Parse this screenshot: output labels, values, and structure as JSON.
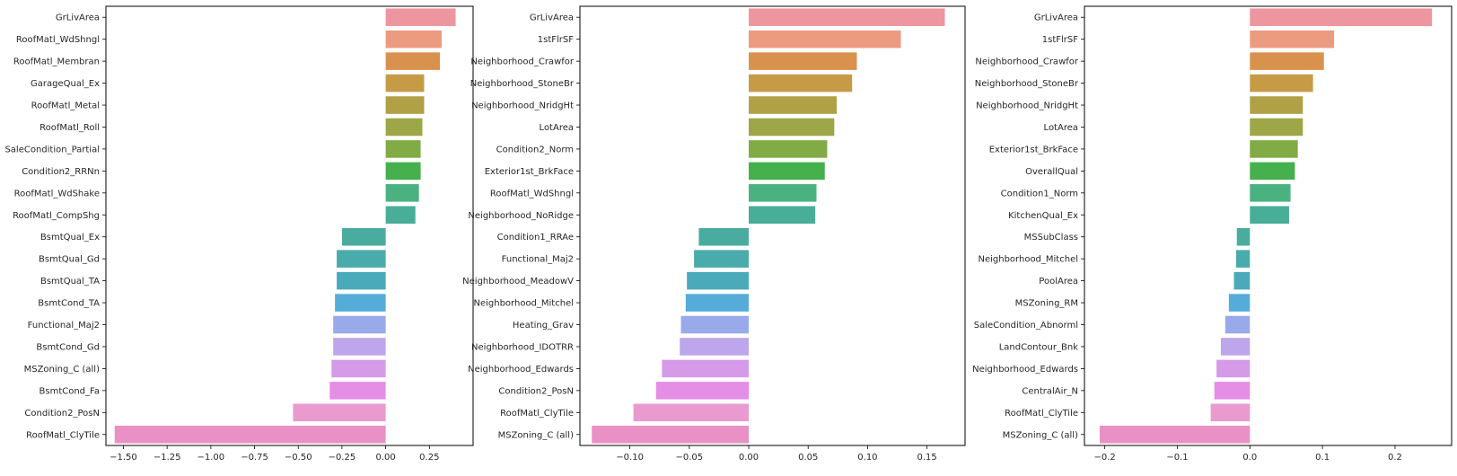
{
  "palette": [
    "#ee96a0",
    "#ec9b80",
    "#d9924e",
    "#c59b46",
    "#b0a046",
    "#9da747",
    "#80ab45",
    "#46b04d",
    "#4ab281",
    "#49ae97",
    "#4aac9f",
    "#4aabab",
    "#4aaab9",
    "#55acd9",
    "#98aae9",
    "#bda6eb",
    "#d59be9",
    "#e58ee5",
    "#e99bcf",
    "#e991c4"
  ],
  "chart_data": [
    {
      "type": "bar",
      "orientation": "horizontal",
      "categories": [
        "GrLivArea",
        "RoofMatl_WdShngl",
        "RoofMatl_Membran",
        "GarageQual_Ex",
        "RoofMatl_Metal",
        "RoofMatl_Roll",
        "SaleCondition_Partial",
        "Condition2_RRNn",
        "RoofMatl_WdShake",
        "RoofMatl_CompShg",
        "BsmtQual_Ex",
        "BsmtQual_Gd",
        "BsmtQual_TA",
        "BsmtCond_TA",
        "Functional_Maj2",
        "BsmtCond_Gd",
        "MSZoning_C (all)",
        "BsmtCond_Fa",
        "Condition2_PosN",
        "RoofMatl_ClyTile"
      ],
      "values": [
        0.4,
        0.32,
        0.31,
        0.22,
        0.22,
        0.21,
        0.2,
        0.2,
        0.19,
        0.17,
        -0.25,
        -0.28,
        -0.28,
        -0.29,
        -0.3,
        -0.3,
        -0.31,
        -0.32,
        -0.53,
        -1.55
      ],
      "xlim": [
        -1.6,
        0.5
      ],
      "xticks": [
        -1.5,
        -1.25,
        -1.0,
        -0.75,
        -0.5,
        -0.25,
        0.0,
        0.25
      ],
      "xtick_labels": [
        "−1.50",
        "−1.25",
        "−1.00",
        "−0.75",
        "−0.50",
        "−0.25",
        "0.00",
        "0.25"
      ],
      "grid": false
    },
    {
      "type": "bar",
      "orientation": "horizontal",
      "categories": [
        "GrLivArea",
        "1stFlrSF",
        "Neighborhood_Crawfor",
        "Neighborhood_StoneBr",
        "Neighborhood_NridgHt",
        "LotArea",
        "Condition2_Norm",
        "Exterior1st_BrkFace",
        "RoofMatl_WdShngl",
        "Neighborhood_NoRidge",
        "Condition1_RRAe",
        "Functional_Maj2",
        "Neighborhood_MeadowV",
        "Neighborhood_Mitchel",
        "Heating_Grav",
        "Neighborhood_IDOTRR",
        "Neighborhood_Edwards",
        "Condition2_PosN",
        "RoofMatl_ClyTile",
        "MSZoning_C (all)"
      ],
      "values": [
        0.165,
        0.128,
        0.091,
        0.087,
        0.074,
        0.072,
        0.066,
        0.064,
        0.057,
        0.056,
        -0.042,
        -0.046,
        -0.052,
        -0.053,
        -0.057,
        -0.058,
        -0.073,
        -0.078,
        -0.097,
        -0.132
      ],
      "xlim": [
        -0.142,
        0.182
      ],
      "xticks": [
        -0.1,
        -0.05,
        0.0,
        0.05,
        0.1,
        0.15
      ],
      "xtick_labels": [
        "−0.10",
        "−0.05",
        "0.00",
        "0.05",
        "0.10",
        "0.15"
      ],
      "grid": false
    },
    {
      "type": "bar",
      "orientation": "horizontal",
      "categories": [
        "GrLivArea",
        "1stFlrSF",
        "Neighborhood_Crawfor",
        "Neighborhood_StoneBr",
        "Neighborhood_NridgHt",
        "LotArea",
        "Exterior1st_BrkFace",
        "OverallQual",
        "Condition1_Norm",
        "KitchenQual_Ex",
        "MSSubClass",
        "Neighborhood_Mitchel",
        "PoolArea",
        "MSZoning_RM",
        "SaleCondition_Abnorml",
        "LandContour_Bnk",
        "Neighborhood_Edwards",
        "CentralAir_N",
        "RoofMatl_ClyTile",
        "MSZoning_C (all)"
      ],
      "values": [
        0.251,
        0.116,
        0.102,
        0.087,
        0.073,
        0.073,
        0.066,
        0.062,
        0.056,
        0.054,
        -0.018,
        -0.019,
        -0.022,
        -0.029,
        -0.034,
        -0.04,
        -0.046,
        -0.049,
        -0.054,
        -0.207
      ],
      "xlim": [
        -0.228,
        0.278
      ],
      "xticks": [
        -0.2,
        -0.1,
        0.0,
        0.1,
        0.2
      ],
      "xtick_labels": [
        "−0.2",
        "−0.1",
        "0.0",
        "0.1",
        "0.2"
      ],
      "grid": false
    }
  ]
}
